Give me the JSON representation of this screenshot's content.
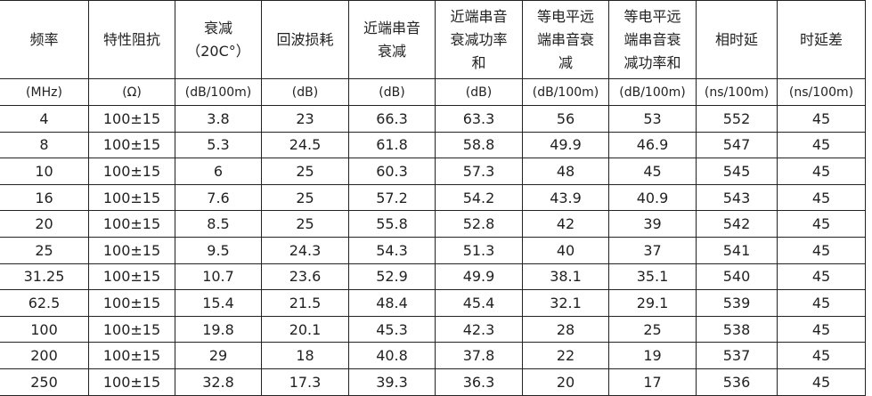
{
  "table": {
    "headers": [
      "频率",
      "特性阻抗",
      "衰减\n（20C°）",
      "回波损耗",
      "近端串音\n衰减",
      "近端串音\n衰减功率\n和",
      "等电平远\n端串音衰\n减",
      "等电平远\n端串音衰\n减功率和",
      "相时延",
      "时延差"
    ],
    "units": [
      "(MHz)",
      "(Ω)",
      "(dB/100m)",
      "(dB)",
      "(dB)",
      "(dB)",
      "(dB/100m)",
      "(dB/100m)",
      "(ns/100m)",
      "(ns/100m)"
    ],
    "rows": [
      [
        "4",
        "100±15",
        "3.8",
        "23",
        "66.3",
        "63.3",
        "56",
        "53",
        "552",
        "45"
      ],
      [
        "8",
        "100±15",
        "5.3",
        "24.5",
        "61.8",
        "58.8",
        "49.9",
        "46.9",
        "547",
        "45"
      ],
      [
        "10",
        "100±15",
        "6",
        "25",
        "60.3",
        "57.3",
        "48",
        "45",
        "545",
        "45"
      ],
      [
        "16",
        "100±15",
        "7.6",
        "25",
        "57.2",
        "54.2",
        "43.9",
        "40.9",
        "543",
        "45"
      ],
      [
        "20",
        "100±15",
        "8.5",
        "25",
        "55.8",
        "52.8",
        "42",
        "39",
        "542",
        "45"
      ],
      [
        "25",
        "100±15",
        "9.5",
        "24.3",
        "54.3",
        "51.3",
        "40",
        "37",
        "541",
        "45"
      ],
      [
        "31.25",
        "100±15",
        "10.7",
        "23.6",
        "52.9",
        "49.9",
        "38.1",
        "35.1",
        "540",
        "45"
      ],
      [
        "62.5",
        "100±15",
        "15.4",
        "21.5",
        "48.4",
        "45.4",
        "32.1",
        "29.1",
        "539",
        "45"
      ],
      [
        "100",
        "100±15",
        "19.8",
        "20.1",
        "45.3",
        "42.3",
        "28",
        "25",
        "538",
        "45"
      ],
      [
        "200",
        "100±15",
        "29",
        "18",
        "40.8",
        "37.8",
        "22",
        "19",
        "537",
        "45"
      ],
      [
        "250",
        "100±15",
        "32.8",
        "17.3",
        "39.3",
        "36.3",
        "20",
        "17",
        "536",
        "45"
      ]
    ]
  }
}
